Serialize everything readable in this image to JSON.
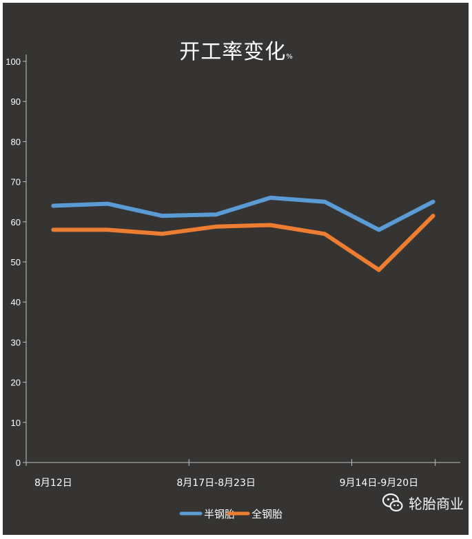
{
  "chart_data": {
    "type": "line",
    "title": "开工率变化",
    "title_unit": "%",
    "x": [
      "8月12日",
      "",
      "",
      "8月17日-8月23日",
      "",
      "",
      "9月14日-9月20日",
      ""
    ],
    "tick_labels": [
      "8月12日",
      "8月17日-8月23日",
      "9月14日-9月20日"
    ],
    "ylim": [
      0,
      100
    ],
    "yticks": [
      0,
      10,
      20,
      30,
      40,
      50,
      60,
      70,
      80,
      90,
      100
    ],
    "grid": false,
    "legend": "bottom",
    "series": [
      {
        "name": "半钢胎",
        "color": "#5b9bd5",
        "values": [
          64,
          64.5,
          61.5,
          61.8,
          66,
          65,
          58,
          65
        ]
      },
      {
        "name": "全钢胎",
        "color": "#ed7d31",
        "values": [
          58,
          58,
          57,
          58.8,
          59.2,
          57,
          48,
          61.5
        ]
      }
    ]
  },
  "watermark": {
    "text": "轮胎商业",
    "icon": "wechat-icon"
  },
  "colors": {
    "background": "#353433",
    "axis": "#bfbfbf",
    "text": "#ffffff"
  }
}
